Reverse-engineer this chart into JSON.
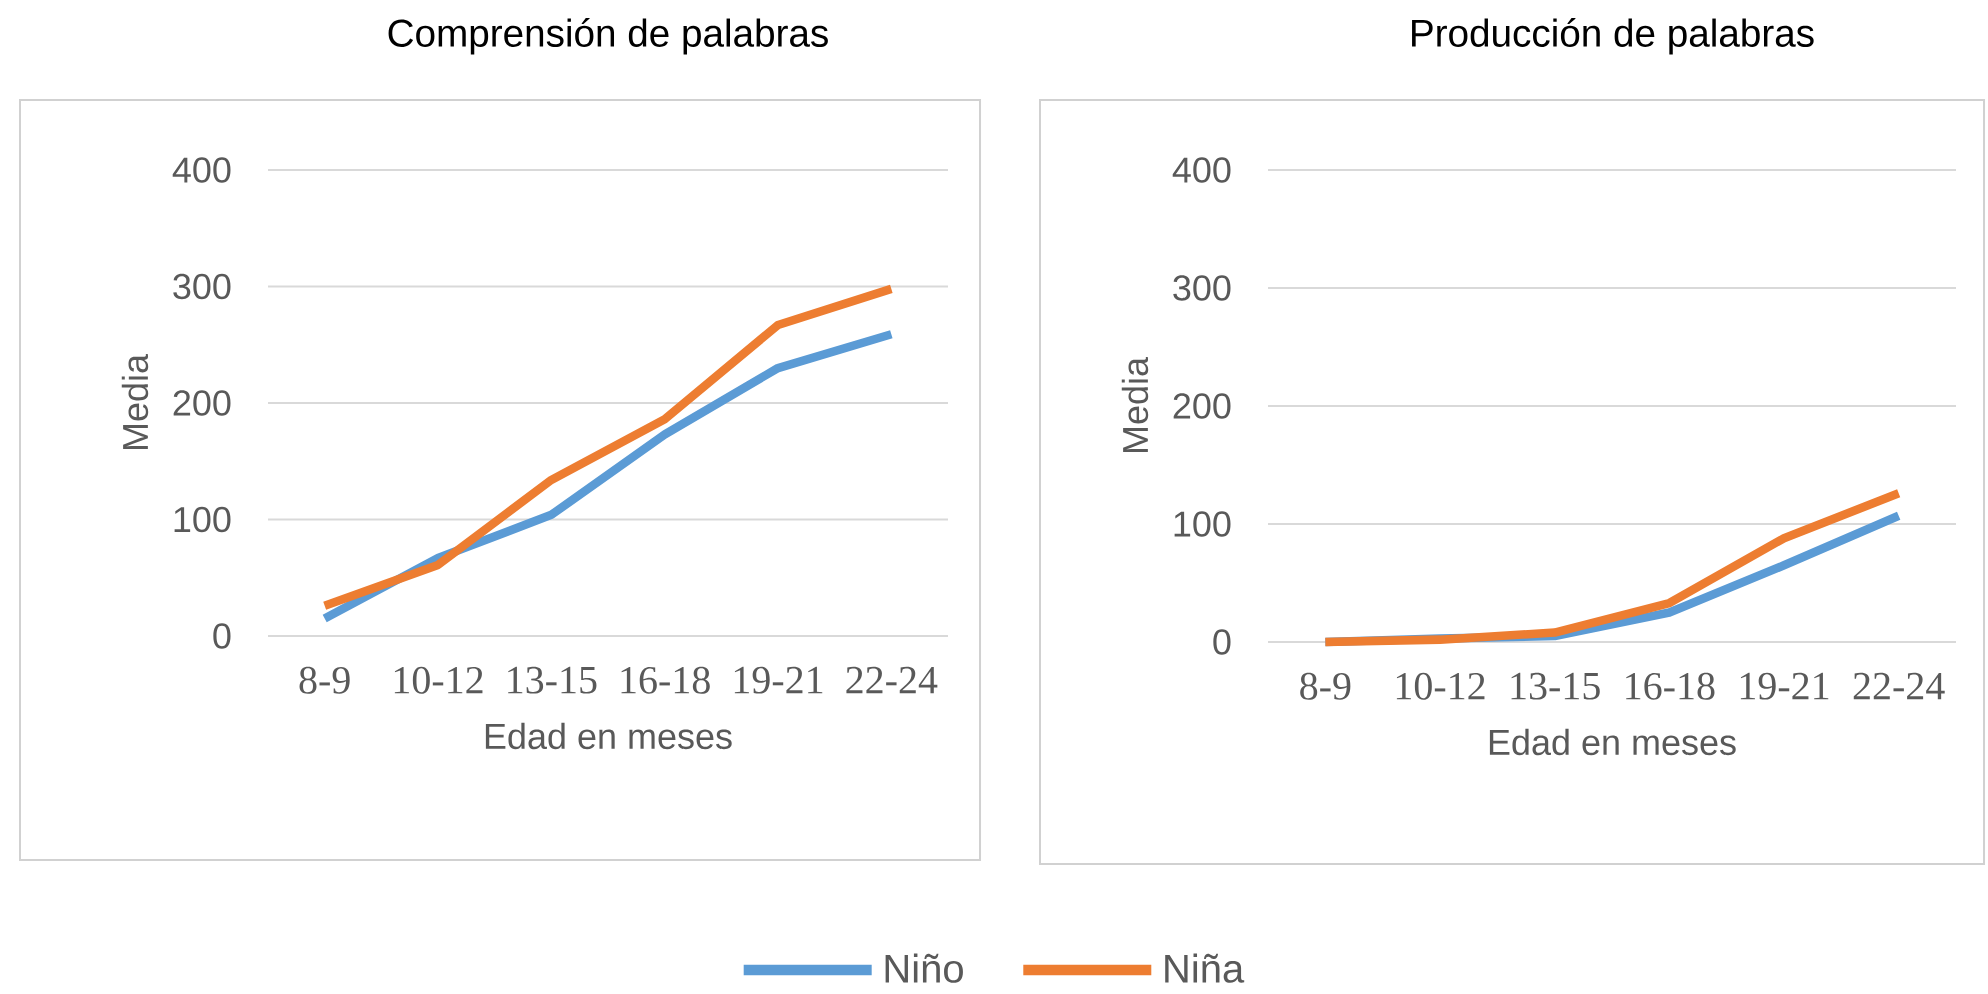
{
  "chart_data": [
    {
      "type": "line",
      "title": "Comprensión de palabras",
      "xlabel": "Edad en meses",
      "ylabel": "Media",
      "categories": [
        "8-9",
        "10-12",
        "13-15",
        "16-18",
        "19-21",
        "22-24"
      ],
      "series": [
        {
          "name": "Niño",
          "color": "#5b9bd5",
          "values": [
            15,
            67,
            104,
            173,
            230,
            259
          ]
        },
        {
          "name": "Niña",
          "color": "#ed7d31",
          "values": [
            26,
            61,
            134,
            186,
            267,
            298
          ]
        }
      ],
      "ylim": [
        0,
        400
      ],
      "yticks": [
        0,
        100,
        200,
        300,
        400
      ],
      "grid": "y",
      "legend": "bottom"
    },
    {
      "type": "line",
      "title": "Producción de palabras",
      "xlabel": "Edad en meses",
      "ylabel": "Media",
      "categories": [
        "8-9",
        "10-12",
        "13-15",
        "16-18",
        "19-21",
        "22-24"
      ],
      "series": [
        {
          "color": "#5b9bd5",
          "values": [
            0,
            3,
            5,
            25,
            65,
            107
          ]
        },
        {
          "color": "#ed7d31",
          "values": [
            0,
            2,
            8,
            33,
            88,
            126
          ]
        }
      ],
      "ylim": [
        0,
        400
      ],
      "yticks": [
        0,
        100,
        200,
        300,
        400
      ],
      "grid": "y"
    }
  ]
}
